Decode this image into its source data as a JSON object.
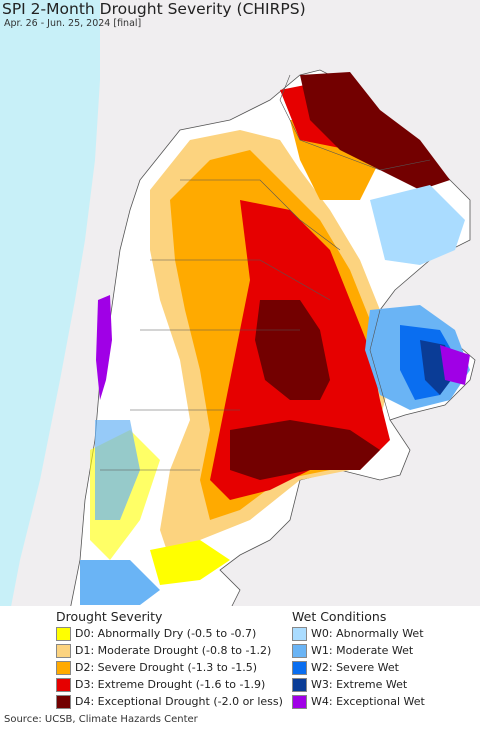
{
  "title": "SPI 2-Month Drought Severity (CHIRPS)",
  "subtitle": "Apr. 26 - Jun. 25, 2024 [final]",
  "legend": {
    "drought": {
      "heading": "Drought Severity",
      "items": [
        {
          "label": "D0: Abnormally Dry (-0.5 to -0.7)",
          "color": "#ffff00"
        },
        {
          "label": "D1: Moderate Drought (-0.8 to -1.2)",
          "color": "#fcd37f"
        },
        {
          "label": "D2: Severe Drought (-1.3 to -1.5)",
          "color": "#ffaa00"
        },
        {
          "label": "D3: Extreme Drought (-1.6 to -1.9)",
          "color": "#e60000"
        },
        {
          "label": "D4: Exceptional Drought (-2.0 or less)",
          "color": "#730000"
        }
      ]
    },
    "wet": {
      "heading": "Wet Conditions",
      "items": [
        {
          "label": "W0: Abnormally Wet",
          "color": "#aadcff"
        },
        {
          "label": "W1: Moderate Wet",
          "color": "#6ab4f5"
        },
        {
          "label": "W2: Severe Wet",
          "color": "#0a6ef0"
        },
        {
          "label": "W3: Extreme Wet",
          "color": "#0a3c96"
        },
        {
          "label": "W4: Exceptional Wet",
          "color": "#a000e6"
        }
      ]
    }
  },
  "source": "Source: UCSB, Climate Hazards Center",
  "colors": {
    "ocean": "#c8f0f8",
    "land_outside": "#f0eef0",
    "no_data": "#ffffff"
  }
}
